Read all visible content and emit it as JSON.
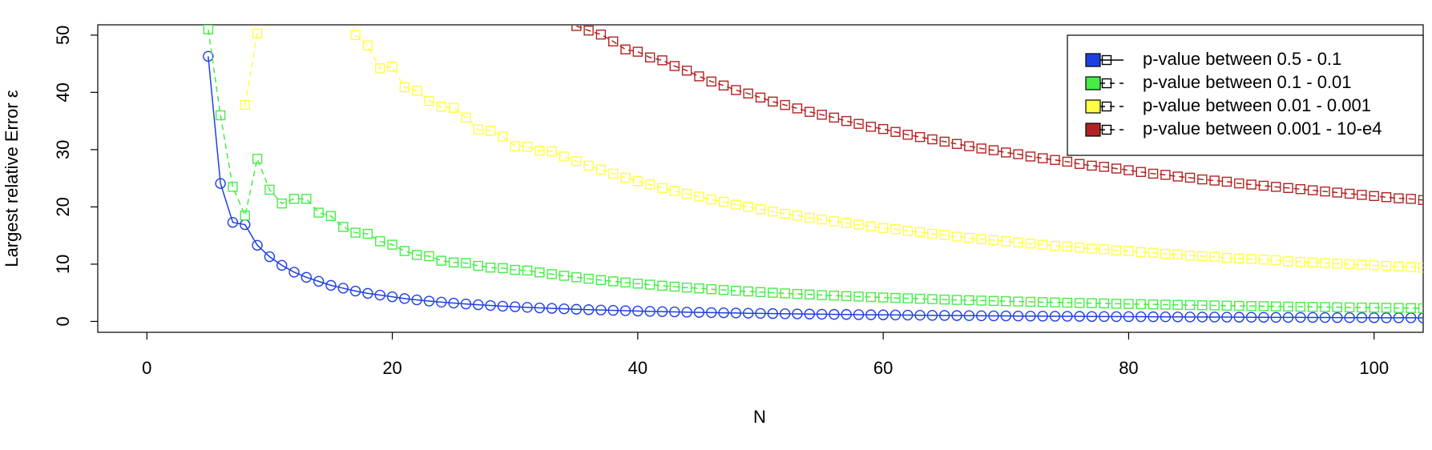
{
  "chart_data": {
    "type": "line",
    "xlabel": "N",
    "ylabel": "Largest relative Error ε",
    "x": [
      5,
      6,
      7,
      8,
      9,
      10,
      11,
      12,
      13,
      14,
      15,
      16,
      17,
      18,
      19,
      20,
      21,
      22,
      23,
      24,
      25,
      26,
      27,
      28,
      29,
      30,
      31,
      32,
      33,
      34,
      35,
      36,
      37,
      38,
      39,
      40,
      41,
      42,
      43,
      44,
      45,
      46,
      47,
      48,
      49,
      50,
      51,
      52,
      53,
      54,
      55,
      56,
      57,
      58,
      59,
      60,
      61,
      62,
      63,
      64,
      65,
      66,
      67,
      68,
      69,
      70,
      71,
      72,
      73,
      74,
      75,
      76,
      77,
      78,
      79,
      80,
      81,
      82,
      83,
      84,
      85,
      86,
      87,
      88,
      89,
      90,
      91,
      92,
      93,
      94,
      95,
      96,
      97,
      98,
      99,
      100,
      101,
      102,
      103,
      104
    ],
    "series": [
      {
        "name": "p-value between 0.5 - 0.1",
        "color": "#1f3fe0",
        "dashed": false,
        "marker": "circle",
        "values": [
          46.3,
          24.1,
          17.3,
          16.9,
          13.3,
          11.3,
          9.8,
          8.6,
          7.7,
          7.0,
          6.3,
          5.8,
          5.3,
          4.9,
          4.6,
          4.3,
          3.99,
          3.76,
          3.55,
          3.37,
          3.2,
          3.05,
          2.91,
          2.78,
          2.66,
          2.56,
          2.46,
          2.36,
          2.28,
          2.2,
          2.12,
          2.05,
          1.99,
          1.93,
          1.87,
          1.81,
          1.76,
          1.71,
          1.67,
          1.62,
          1.58,
          1.54,
          1.5,
          1.47,
          1.43,
          1.4,
          1.37,
          1.34,
          1.31,
          1.28,
          1.26,
          1.23,
          1.21,
          1.18,
          1.16,
          1.14,
          1.12,
          1.1,
          1.08,
          1.06,
          1.04,
          1.02,
          1.01,
          0.99,
          0.97,
          0.96,
          0.94,
          0.93,
          0.92,
          0.9,
          0.89,
          0.88,
          0.86,
          0.85,
          0.84,
          0.83,
          0.82,
          0.81,
          0.8,
          0.79,
          0.78,
          0.77,
          0.76,
          0.75,
          0.74,
          0.73,
          0.72,
          0.71,
          0.7,
          0.7,
          0.69,
          0.68,
          0.67,
          0.66,
          0.66,
          0.65,
          0.64,
          0.64,
          0.63,
          0.62
        ]
      },
      {
        "name": "p-value between 0.1 - 0.01",
        "color": "#44ee44",
        "dashed": true,
        "marker": "square",
        "values": [
          51,
          36,
          23.5,
          18.5,
          28.4,
          23,
          20.6,
          21.4,
          21.4,
          19,
          18.4,
          16.5,
          15.5,
          15.3,
          14,
          13.4,
          12.3,
          11.6,
          11.4,
          10.6,
          10.3,
          10.2,
          9.7,
          9.4,
          9.3,
          9.0,
          8.89,
          8.56,
          8.26,
          7.97,
          7.71,
          7.46,
          7.22,
          7.0,
          6.8,
          6.6,
          6.42,
          6.24,
          6.07,
          5.92,
          5.77,
          5.63,
          5.49,
          5.36,
          5.24,
          5.12,
          5.01,
          4.9,
          4.8,
          4.7,
          4.6,
          4.51,
          4.42,
          4.34,
          4.26,
          4.18,
          4.1,
          4.03,
          3.96,
          3.89,
          3.82,
          3.76,
          3.7,
          3.64,
          3.58,
          3.53,
          3.47,
          3.42,
          3.37,
          3.32,
          3.27,
          3.22,
          3.18,
          3.14,
          3.09,
          3.05,
          3.01,
          2.97,
          2.93,
          2.89,
          2.86,
          2.82,
          2.79,
          2.75,
          2.72,
          2.69,
          2.66,
          2.62,
          2.59,
          2.56,
          2.54,
          2.51,
          2.48,
          2.45,
          2.43,
          2.4,
          2.38,
          2.35,
          2.33,
          2.3
        ]
      },
      {
        "name": "p-value between 0.01 - 0.001",
        "color": "#ffff44",
        "dashed": true,
        "marker": "square",
        "values": [
          null,
          null,
          null,
          37.8,
          50.3,
          null,
          null,
          null,
          null,
          null,
          null,
          null,
          50,
          48.2,
          44.2,
          44.5,
          40.9,
          40.3,
          38.5,
          37.5,
          37.3,
          35.6,
          33.5,
          33.3,
          32.3,
          30.6,
          30.5,
          29.8,
          29.7,
          28.8,
          28,
          27.2,
          26.5,
          25.8,
          25.1,
          24.5,
          23.9,
          23.3,
          22.8,
          22.3,
          21.8,
          21.3,
          20.9,
          20.4,
          20,
          19.6,
          19.2,
          18.8,
          18.5,
          18.1,
          17.8,
          17.5,
          17.2,
          16.9,
          16.6,
          16.3,
          16.1,
          15.8,
          15.6,
          15.3,
          15.1,
          14.8,
          14.6,
          14.4,
          14.2,
          14,
          13.8,
          13.6,
          13.4,
          13.2,
          13.1,
          12.9,
          12.7,
          12.6,
          12.4,
          12.3,
          12.1,
          12,
          11.8,
          11.7,
          11.5,
          11.4,
          11.3,
          11.1,
          11,
          10.9,
          10.8,
          10.7,
          10.5,
          10.4,
          10.3,
          10.2,
          10.1,
          10,
          9.9,
          9.8,
          9.7,
          9.6,
          9.5,
          9.4
        ]
      },
      {
        "name": "p-value between 0.001 - 10-e4",
        "color": "#b22222",
        "dashed": true,
        "marker": "square",
        "values": [
          null,
          null,
          null,
          null,
          null,
          null,
          null,
          null,
          null,
          null,
          null,
          null,
          null,
          null,
          null,
          null,
          null,
          null,
          null,
          null,
          null,
          null,
          null,
          null,
          null,
          null,
          null,
          null,
          null,
          null,
          51.6,
          50.8,
          50.1,
          48.9,
          47.5,
          47.1,
          46.1,
          45.6,
          44.6,
          43.8,
          42.8,
          41.9,
          41.2,
          40.4,
          39.8,
          39.1,
          38.4,
          37.8,
          37.2,
          36.6,
          36.1,
          35.6,
          35,
          34.5,
          34,
          33.6,
          33.1,
          32.6,
          32.2,
          31.8,
          31.4,
          31,
          30.6,
          30.2,
          29.9,
          29.5,
          29.2,
          28.8,
          28.5,
          28.2,
          27.9,
          27.5,
          27.2,
          27,
          26.7,
          26.4,
          26.1,
          25.8,
          25.6,
          25.3,
          25.1,
          24.8,
          24.6,
          24.4,
          24.1,
          23.9,
          23.7,
          23.5,
          23.3,
          23.1,
          22.9,
          22.7,
          22.5,
          22.3,
          22.1,
          21.9,
          21.7,
          21.5,
          21.4,
          21.2
        ]
      }
    ],
    "xlim": [
      -4,
      104
    ],
    "ylim": [
      -1.9,
      51.8
    ],
    "xticks": [
      0,
      20,
      40,
      60,
      80,
      100
    ],
    "yticks": [
      0,
      10,
      20,
      30,
      40,
      50
    ],
    "legend": "topright"
  }
}
